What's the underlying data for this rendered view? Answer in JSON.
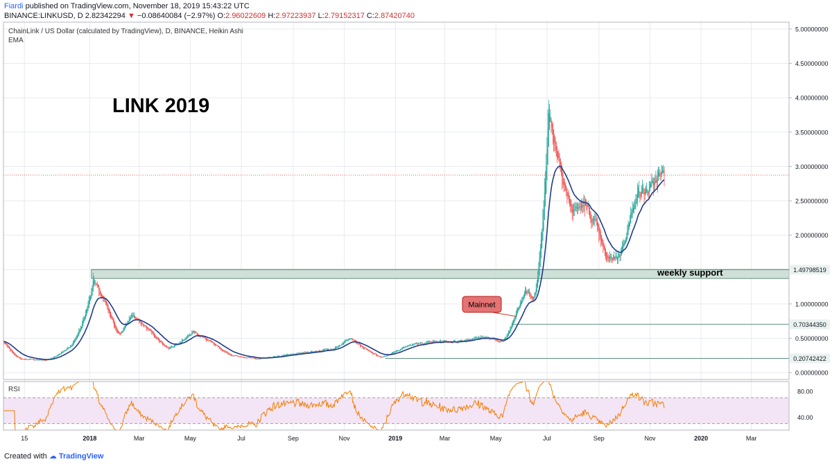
{
  "header": {
    "author": "Fiardi",
    "published_text": "published on TradingView.com, November 18, 2019 15:43:22 UTC",
    "symbol": "BINANCE:LINKUSD, D",
    "last_price": "2.82342294",
    "change": "−0.08640084 (−2.97%)",
    "o_label": "O:",
    "o_value": "2.96022609",
    "h_label": "H:",
    "h_value": "2.97223937",
    "l_label": "L:",
    "l_value": "2.79152317",
    "c_label": "C:",
    "c_value": "2.87420740"
  },
  "chart": {
    "legend_title": "ChainLink / US Dollar (calculated by TradingView), D, BINANCE, Heikin Ashi",
    "legend_indicator": "EMA",
    "annotation_title": "LINK 2019",
    "support_label": "weekly support",
    "mainnet_label": "Mainnet",
    "rsi_label": "RSI",
    "footer_prefix": "Created with",
    "footer_brand": "TradingView"
  },
  "colors": {
    "up": "#26a69a",
    "down": "#ef5350",
    "ema": "#1e3a8a",
    "rsi_line": "#f57c00",
    "rsi_band": "#f3e5f5",
    "support_fill": "#cfe0d8",
    "last_price_line": "#ef5350",
    "mainnet_bubble": "#e57373"
  },
  "chart_data": {
    "type": "candlestick",
    "x_tick_labels": [
      "15",
      "2018",
      "Mar",
      "May",
      "Jul",
      "Sep",
      "Nov",
      "2019",
      "Mar",
      "May",
      "Jul",
      "Sep",
      "Nov",
      "2020",
      "Mar"
    ],
    "x_tick_dates": [
      "2017-10-15",
      "2018-01-01",
      "2018-03-01",
      "2018-05-01",
      "2018-07-01",
      "2018-09-01",
      "2018-11-01",
      "2019-01-01",
      "2019-03-01",
      "2019-05-01",
      "2019-07-01",
      "2019-09-01",
      "2019-11-01",
      "2020-01-01",
      "2020-03-01"
    ],
    "x_range": [
      "2017-09-20",
      "2020-04-15"
    ],
    "y_range": [
      -0.1,
      5.1
    ],
    "y_tick_values": [
      0,
      0.5,
      1,
      1.5,
      2,
      2.5,
      3,
      3.5,
      4,
      4.5,
      5
    ],
    "y_tick_labels": [
      "0.00000000",
      "0.50000000",
      "1.00000000",
      "1.50000000",
      "2.00000000",
      "2.50000000",
      "3.00000000",
      "3.50000000",
      "4.00000000",
      "4.50000000",
      "5.00000000"
    ],
    "level_lines": [
      {
        "value": 1.49798519,
        "label": "1.49798519"
      },
      {
        "value": 0.7034435,
        "label": "0.70344350"
      },
      {
        "value": 0.20742422,
        "label": "0.20742422"
      }
    ],
    "last_price": 2.8742074,
    "support_zone": [
      1.37,
      1.5
    ],
    "price_keypoints": [
      [
        "2017-09-20",
        0.45
      ],
      [
        "2017-10-10",
        0.2
      ],
      [
        "2017-11-10",
        0.18
      ],
      [
        "2017-12-10",
        0.4
      ],
      [
        "2017-12-25",
        0.8
      ],
      [
        "2018-01-05",
        1.35
      ],
      [
        "2018-01-20",
        1.0
      ],
      [
        "2018-02-05",
        0.55
      ],
      [
        "2018-02-20",
        0.85
      ],
      [
        "2018-03-15",
        0.6
      ],
      [
        "2018-04-05",
        0.35
      ],
      [
        "2018-05-05",
        0.6
      ],
      [
        "2018-05-25",
        0.45
      ],
      [
        "2018-06-20",
        0.25
      ],
      [
        "2018-07-20",
        0.2
      ],
      [
        "2018-08-20",
        0.25
      ],
      [
        "2018-09-20",
        0.3
      ],
      [
        "2018-10-20",
        0.35
      ],
      [
        "2018-11-08",
        0.52
      ],
      [
        "2018-11-25",
        0.35
      ],
      [
        "2018-12-15",
        0.22
      ],
      [
        "2019-01-15",
        0.4
      ],
      [
        "2019-02-15",
        0.45
      ],
      [
        "2019-03-15",
        0.45
      ],
      [
        "2019-04-15",
        0.52
      ],
      [
        "2019-05-10",
        0.45
      ],
      [
        "2019-05-25",
        0.9
      ],
      [
        "2019-06-05",
        1.2
      ],
      [
        "2019-06-15",
        1.05
      ],
      [
        "2019-06-25",
        2.1
      ],
      [
        "2019-07-02",
        3.8
      ],
      [
        "2019-07-15",
        3.1
      ],
      [
        "2019-07-30",
        2.35
      ],
      [
        "2019-08-15",
        2.45
      ],
      [
        "2019-08-30",
        2.1
      ],
      [
        "2019-09-10",
        1.65
      ],
      [
        "2019-09-25",
        1.7
      ],
      [
        "2019-10-05",
        2.1
      ],
      [
        "2019-10-15",
        2.6
      ],
      [
        "2019-10-30",
        2.65
      ],
      [
        "2019-11-10",
        2.85
      ],
      [
        "2019-11-18",
        2.874
      ]
    ],
    "rsi": {
      "y_range": [
        20,
        95
      ],
      "y_tick_values": [
        40,
        80
      ],
      "y_tick_labels": [
        "40.00",
        "80.00"
      ],
      "band": [
        30,
        70
      ]
    }
  }
}
